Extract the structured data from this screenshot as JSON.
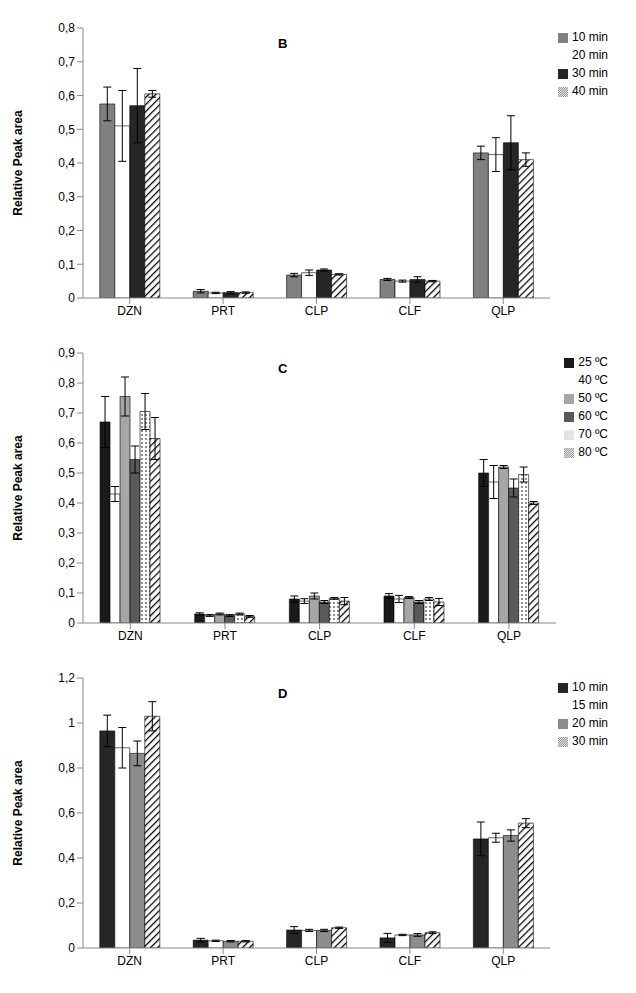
{
  "chart_data": [
    {
      "type": "bar",
      "title": "B",
      "y_label": "Relative Peak area",
      "categories": [
        "DZN",
        "PRT",
        "CLP",
        "CLF",
        "QLP"
      ],
      "ylim": [
        0,
        0.8
      ],
      "yticks": [
        0,
        {
          "value": 0.1,
          "label": "0,1"
        },
        {
          "value": 0.2,
          "label": "0,2"
        },
        {
          "value": 0.3,
          "label": "0,3"
        },
        {
          "value": 0.4,
          "label": "0,4"
        },
        {
          "value": 0.5,
          "label": "0,5"
        },
        {
          "value": 0.6,
          "label": "0,6"
        },
        {
          "value": 0.7,
          "label": "0,7"
        },
        {
          "value": 0.8,
          "label": "0,8"
        }
      ],
      "grid": false,
      "legend": "right",
      "series": [
        {
          "name": "10 min",
          "color": "#808080",
          "values": [
            0.575,
            0.02,
            0.068,
            0.055,
            0.43
          ],
          "errors": [
            0.05,
            0.005,
            0.005,
            0.003,
            0.02
          ]
        },
        {
          "name": "20 min",
          "color": "#ffffff",
          "values": [
            0.51,
            0.015,
            0.075,
            0.05,
            0.425
          ],
          "errors": [
            0.105,
            0.002,
            0.008,
            0.003,
            0.05
          ]
        },
        {
          "name": "30 min",
          "color": "#262626",
          "values": [
            0.57,
            0.016,
            0.083,
            0.055,
            0.46
          ],
          "errors": [
            0.11,
            0.003,
            0.003,
            0.008,
            0.08
          ]
        },
        {
          "name": "40 min",
          "color": "#000000",
          "values": [
            0.605,
            0.016,
            0.07,
            0.05,
            0.41
          ],
          "errors": [
            0.01,
            0.002,
            0.002,
            0.002,
            0.02
          ]
        }
      ]
    },
    {
      "type": "bar",
      "title": "C",
      "y_label": "Relative Peak area",
      "categories": [
        "DZN",
        "PRT",
        "CLP",
        "CLF",
        "QLP"
      ],
      "ylim": [
        0,
        0.9
      ],
      "yticks": [
        0,
        {
          "value": 0.1,
          "label": "0,1"
        },
        {
          "value": 0.2,
          "label": "0,2"
        },
        {
          "value": 0.3,
          "label": "0,3"
        },
        {
          "value": 0.4,
          "label": "0,4"
        },
        {
          "value": 0.5,
          "label": "0,5"
        },
        {
          "value": 0.6,
          "label": "0,6"
        },
        {
          "value": 0.7,
          "label": "0,7"
        },
        {
          "value": 0.8,
          "label": "0,8"
        },
        {
          "value": 0.9,
          "label": "0,9"
        }
      ],
      "grid": false,
      "legend": "right",
      "series": [
        {
          "name": "25 ºC",
          "color": "#1a1a1a",
          "values": [
            0.67,
            0.03,
            0.08,
            0.09,
            0.5
          ],
          "errors": [
            0.085,
            0.004,
            0.01,
            0.008,
            0.045
          ]
        },
        {
          "name": "40 ºC",
          "color": "#ffffff",
          "values": [
            0.43,
            0.025,
            0.073,
            0.08,
            0.47
          ],
          "errors": [
            0.025,
            0.003,
            0.008,
            0.012,
            0.055
          ]
        },
        {
          "name": "50 ºC",
          "color": "#a6a6a6",
          "values": [
            0.755,
            0.03,
            0.09,
            0.085,
            0.52
          ],
          "errors": [
            0.065,
            0.003,
            0.01,
            0.003,
            0.005
          ]
        },
        {
          "name": "60 ºC",
          "color": "#595959",
          "values": [
            0.545,
            0.025,
            0.07,
            0.07,
            0.45
          ],
          "errors": [
            0.045,
            0.003,
            0.005,
            0.005,
            0.03
          ]
        },
        {
          "name": "70 ºC",
          "color": "#000000",
          "values": [
            0.705,
            0.03,
            0.082,
            0.08,
            0.495
          ],
          "errors": [
            0.06,
            0.003,
            0.003,
            0.005,
            0.025
          ]
        },
        {
          "name": "80 ºC",
          "color": "#000000",
          "values": [
            0.615,
            0.022,
            0.073,
            0.07,
            0.4
          ],
          "errors": [
            0.07,
            0.003,
            0.012,
            0.012,
            0.005
          ]
        }
      ]
    },
    {
      "type": "bar",
      "title": "D",
      "y_label": "Relative Peak area",
      "categories": [
        "DZN",
        "PRT",
        "CLP",
        "CLF",
        "QLP"
      ],
      "ylim": [
        0,
        1.2
      ],
      "yticks": [
        0,
        {
          "value": 0.2,
          "label": "0,2"
        },
        {
          "value": 0.4,
          "label": "0,4"
        },
        {
          "value": 0.6,
          "label": "0,6"
        },
        {
          "value": 0.8,
          "label": "0,8"
        },
        1,
        {
          "value": 1.2,
          "label": "1,2"
        }
      ],
      "grid": false,
      "legend": "right",
      "series": [
        {
          "name": "10 min",
          "color": "#262626",
          "values": [
            0.965,
            0.035,
            0.08,
            0.045,
            0.485
          ],
          "errors": [
            0.07,
            0.008,
            0.015,
            0.02,
            0.075
          ]
        },
        {
          "name": "15 min",
          "color": "#ffffff",
          "values": [
            0.89,
            0.032,
            0.078,
            0.058,
            0.49
          ],
          "errors": [
            0.09,
            0.003,
            0.005,
            0.003,
            0.02
          ]
        },
        {
          "name": "20 min",
          "color": "#8c8c8c",
          "values": [
            0.865,
            0.03,
            0.078,
            0.058,
            0.5
          ],
          "errors": [
            0.055,
            0.003,
            0.005,
            0.006,
            0.025
          ]
        },
        {
          "name": "30 min",
          "color": "#000000",
          "values": [
            1.03,
            0.03,
            0.09,
            0.068,
            0.555
          ],
          "errors": [
            0.065,
            0.003,
            0.003,
            0.004,
            0.02
          ]
        }
      ]
    }
  ]
}
